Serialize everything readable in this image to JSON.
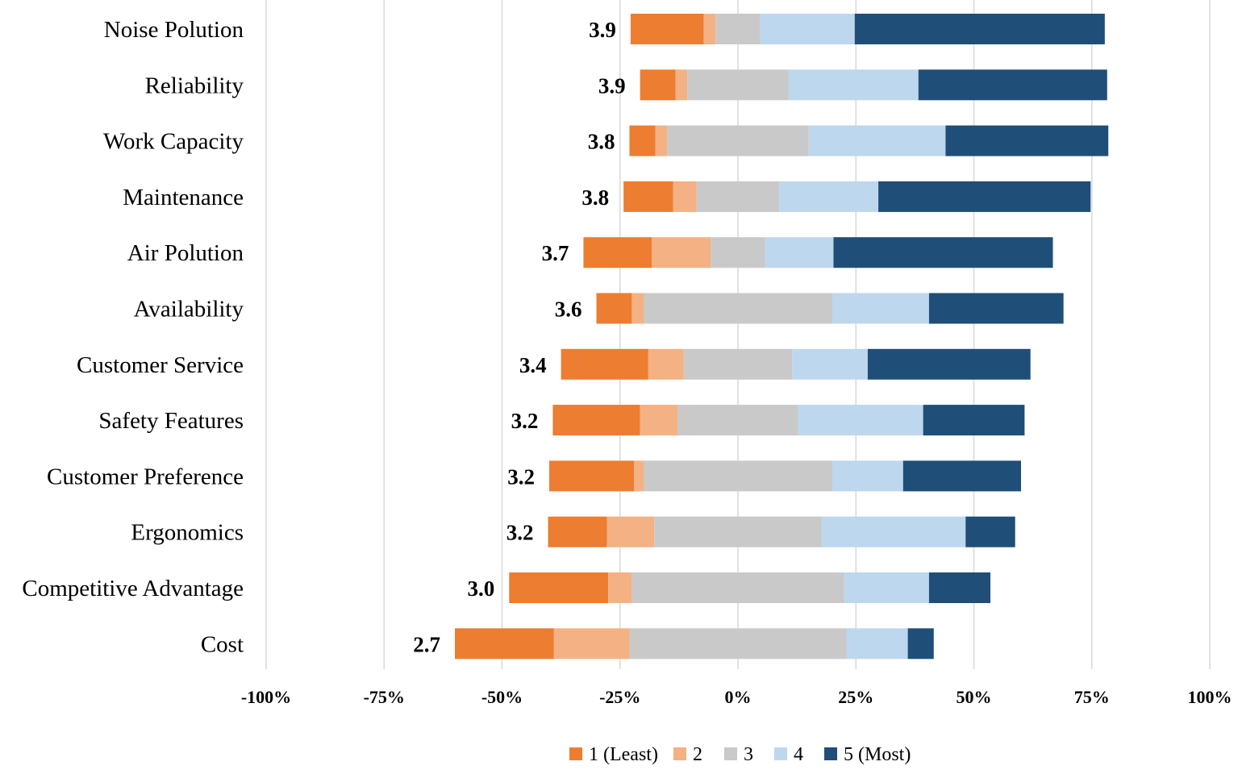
{
  "chart_data": {
    "type": "bar",
    "subtype": "diverging-stacked-horizontal",
    "title": "",
    "xlabel": "",
    "ylabel": "",
    "xlim": [
      -100,
      100
    ],
    "x_ticks": [
      -100,
      -75,
      -50,
      -25,
      0,
      25,
      50,
      75,
      100
    ],
    "x_tick_labels": [
      "-100%",
      "-75%",
      "-50%",
      "-25%",
      "0%",
      "25%",
      "50%",
      "75%",
      "100%"
    ],
    "grid": true,
    "legend_position": "bottom",
    "series": [
      {
        "name": "1 (Least)",
        "color": "#ED7D31"
      },
      {
        "name": "2",
        "color": "#F4B183"
      },
      {
        "name": "3",
        "color": "#C9C9C9"
      },
      {
        "name": "4",
        "color": "#BDD7EE"
      },
      {
        "name": "5 (Most)",
        "color": "#1F4E79"
      }
    ],
    "categories": [
      "Noise Polution",
      "Reliability",
      "Work Capacity",
      "Maintenance",
      "Air Polution",
      "Availability",
      "Customer Service",
      "Safety Features",
      "Customer Preference",
      "Ergonomics",
      "Competitive Advantage",
      "Cost"
    ],
    "means": [
      "3.9",
      "3.9",
      "3.8",
      "3.8",
      "3.7",
      "3.6",
      "3.4",
      "3.2",
      "3.2",
      "3.2",
      "3.0",
      "2.7"
    ],
    "values": [
      [
        15.5,
        2.5,
        9.5,
        20,
        53
      ],
      [
        7.5,
        2.5,
        21.5,
        27.5,
        40
      ],
      [
        5.5,
        2.5,
        30,
        29,
        34.5
      ],
      [
        10.5,
        5,
        17.5,
        21,
        45
      ],
      [
        14.5,
        12.5,
        11.5,
        14.5,
        46.5
      ],
      [
        7.5,
        2.5,
        40,
        20.5,
        28.5
      ],
      [
        18.5,
        7.5,
        23,
        16,
        34.5
      ],
      [
        18.5,
        8,
        25.5,
        26.5,
        21.5
      ],
      [
        18,
        2,
        40,
        15,
        25
      ],
      [
        12.5,
        10,
        35.5,
        30.5,
        10.5
      ],
      [
        21,
        5,
        45,
        18,
        13
      ],
      [
        21,
        16,
        46,
        13,
        5.5
      ]
    ]
  }
}
